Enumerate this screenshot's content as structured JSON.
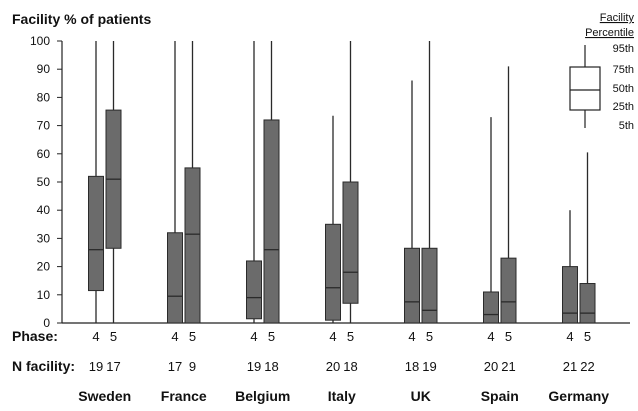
{
  "chart_data": {
    "type": "box",
    "title": "Facility % of patients",
    "ylim": [
      0,
      100
    ],
    "yticks": [
      0,
      10,
      20,
      30,
      40,
      50,
      60,
      70,
      80,
      90,
      100
    ],
    "phase_label": "Phase:",
    "nfacility_label": "N facility:",
    "colors": {
      "box": "#6b6b6b",
      "line": "#2a2a2a"
    },
    "groups": [
      {
        "country": "Sweden",
        "boxes": [
          {
            "phase": "4",
            "n": "19",
            "p5": 0,
            "p25": 11.5,
            "p50": 26,
            "p75": 52,
            "p95": 100
          },
          {
            "phase": "5",
            "n": "17",
            "p5": 0,
            "p25": 26.5,
            "p50": 51,
            "p75": 75.5,
            "p95": 100
          }
        ]
      },
      {
        "country": "France",
        "boxes": [
          {
            "phase": "4",
            "n": "17",
            "p5": 0,
            "p25": 0,
            "p50": 9.5,
            "p75": 32,
            "p95": 100
          },
          {
            "phase": "5",
            "n": "9",
            "p5": 0,
            "p25": 0,
            "p50": 31.5,
            "p75": 55,
            "p95": 100
          }
        ]
      },
      {
        "country": "Belgium",
        "boxes": [
          {
            "phase": "4",
            "n": "19",
            "p5": 0,
            "p25": 1.5,
            "p50": 9,
            "p75": 22,
            "p95": 100
          },
          {
            "phase": "5",
            "n": "18",
            "p5": 0,
            "p25": 0,
            "p50": 26,
            "p75": 72,
            "p95": 100
          }
        ]
      },
      {
        "country": "Italy",
        "boxes": [
          {
            "phase": "4",
            "n": "20",
            "p5": 0,
            "p25": 1,
            "p50": 12.5,
            "p75": 35,
            "p95": 73.5
          },
          {
            "phase": "5",
            "n": "18",
            "p5": 0,
            "p25": 7,
            "p50": 18,
            "p75": 50,
            "p95": 100
          }
        ]
      },
      {
        "country": "UK",
        "boxes": [
          {
            "phase": "4",
            "n": "18",
            "p5": 0,
            "p25": 0,
            "p50": 7.5,
            "p75": 26.5,
            "p95": 86
          },
          {
            "phase": "5",
            "n": "19",
            "p5": 0,
            "p25": 0,
            "p50": 4.5,
            "p75": 26.5,
            "p95": 100
          }
        ]
      },
      {
        "country": "Spain",
        "boxes": [
          {
            "phase": "4",
            "n": "20",
            "p5": 0,
            "p25": 0,
            "p50": 3,
            "p75": 11,
            "p95": 73
          },
          {
            "phase": "5",
            "n": "21",
            "p5": 0,
            "p25": 0,
            "p50": 7.5,
            "p75": 23,
            "p95": 91
          }
        ]
      },
      {
        "country": "Germany",
        "boxes": [
          {
            "phase": "4",
            "n": "21",
            "p5": 0,
            "p25": 0,
            "p50": 3.5,
            "p75": 20,
            "p95": 40
          },
          {
            "phase": "5",
            "n": "22",
            "p5": 0,
            "p25": 0,
            "p50": 3.5,
            "p75": 14,
            "p95": 60.5
          }
        ]
      }
    ],
    "legend": {
      "title_lines": [
        "Facility",
        "Percentile"
      ],
      "labels": [
        "95th",
        "75th",
        "50th",
        "25th",
        "5th"
      ],
      "placement": "top-right"
    }
  }
}
